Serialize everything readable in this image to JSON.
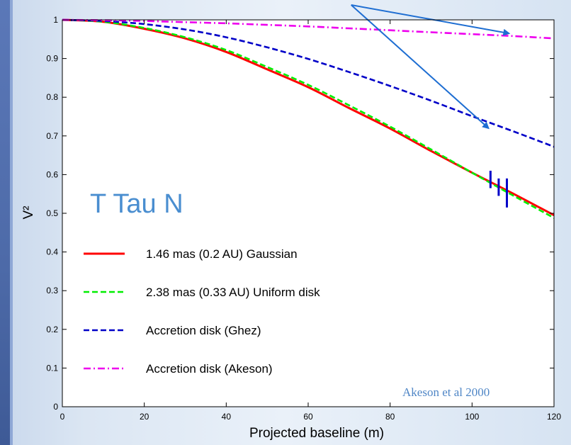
{
  "chart_data": {
    "type": "line",
    "xlabel": "Projected baseline (m)",
    "ylabel": "V²",
    "xlim": [
      0,
      120
    ],
    "ylim": [
      0,
      1
    ],
    "xticks": [
      "0",
      "20",
      "40",
      "60",
      "80",
      "100",
      "120"
    ],
    "yticks": [
      "0",
      "0.1",
      "0.2",
      "0.3",
      "0.4",
      "0.5",
      "0.6",
      "0.7",
      "0.8",
      "0.9",
      "1"
    ],
    "grid": false,
    "legend_position": "lower-left",
    "series": [
      {
        "name": "1.46 mas (0.2 AU) Gaussian",
        "color": "#ff0000",
        "dash": "solid",
        "x": [
          0,
          10,
          20,
          30,
          40,
          50,
          60,
          70,
          80,
          90,
          100,
          110,
          120
        ],
        "y": [
          1.0,
          0.995,
          0.977,
          0.952,
          0.917,
          0.872,
          0.826,
          0.772,
          0.719,
          0.661,
          0.605,
          0.551,
          0.495
        ]
      },
      {
        "name": "2.38 mas (0.33 AU) Uniform disk",
        "color": "#00ee00",
        "dash": "dashed",
        "x": [
          0,
          10,
          20,
          30,
          40,
          50,
          60,
          70,
          80,
          90,
          100,
          110,
          120
        ],
        "y": [
          1.0,
          0.995,
          0.979,
          0.955,
          0.922,
          0.878,
          0.832,
          0.779,
          0.724,
          0.665,
          0.605,
          0.546,
          0.488
        ]
      },
      {
        "name": "Accretion disk (Ghez)",
        "color": "#0000c8",
        "dash": "dashed",
        "x": [
          0,
          10,
          20,
          30,
          40,
          50,
          60,
          70,
          80,
          90,
          100,
          110,
          120
        ],
        "y": [
          1.0,
          0.997,
          0.989,
          0.975,
          0.955,
          0.929,
          0.899,
          0.865,
          0.829,
          0.791,
          0.751,
          0.712,
          0.672
        ]
      },
      {
        "name": "Accretion disk (Akeson)",
        "color": "#ee00ee",
        "dash": "dashdot",
        "x": [
          0,
          10,
          20,
          30,
          40,
          50,
          60,
          70,
          80,
          90,
          100,
          110,
          120
        ],
        "y": [
          1.0,
          0.999,
          0.997,
          0.994,
          0.991,
          0.987,
          0.983,
          0.978,
          0.973,
          0.968,
          0.963,
          0.958,
          0.952
        ]
      }
    ],
    "error_bars": [
      {
        "x": 104.5,
        "low": 0.565,
        "high": 0.61
      },
      {
        "x": 106.5,
        "low": 0.545,
        "high": 0.59
      },
      {
        "x": 108.5,
        "low": 0.515,
        "high": 0.59
      }
    ],
    "annotations": {
      "object_label": "T Tau N",
      "credit": "Akeson et al 2000",
      "arrow_color": "#1e6ed2",
      "arrow_targets": [
        {
          "x": 109,
          "y": 0.965
        },
        {
          "x": 104,
          "y": 0.72
        }
      ]
    },
    "axis_color": "#000000"
  }
}
